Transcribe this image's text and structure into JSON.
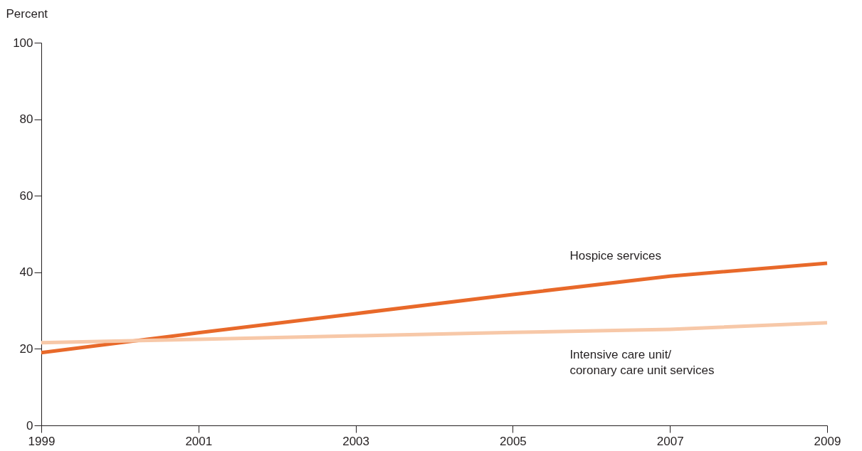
{
  "chart_data": {
    "type": "line",
    "ylabel": "Percent",
    "x": [
      1999,
      2001,
      2003,
      2005,
      2007,
      2009
    ],
    "xlim": [
      1999,
      2009
    ],
    "xticks": [
      1999,
      2001,
      2003,
      2005,
      2007,
      2009
    ],
    "ylim": [
      0,
      100
    ],
    "yticks": [
      0,
      20,
      40,
      60,
      80,
      100
    ],
    "grid": false,
    "marker": "none",
    "line_style": "solid",
    "series": [
      {
        "name": "Hospice services",
        "color": "#e8692a",
        "values": [
          19.0,
          24.2,
          29.2,
          34.2,
          39.0,
          42.4
        ]
      },
      {
        "name": "Intensive care unit/ coronary care unit services",
        "color": "#f7c8a8",
        "values": [
          21.6,
          22.5,
          23.4,
          24.3,
          25.1,
          26.8
        ]
      }
    ]
  }
}
